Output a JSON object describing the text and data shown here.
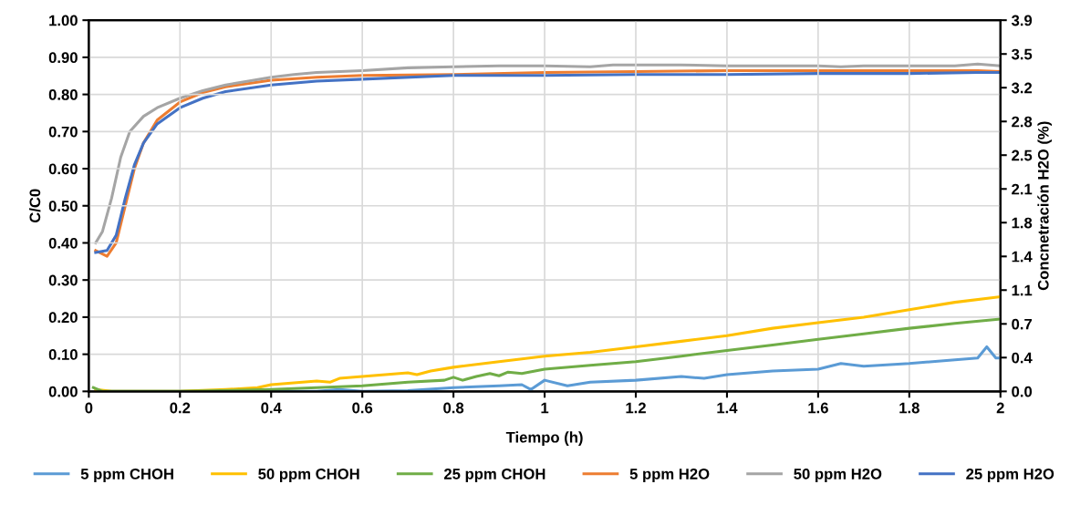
{
  "chart_data": {
    "type": "line",
    "xlabel": "Tiempo (h)",
    "ylabel": "C/C0",
    "y2label": "Concnetración H2O (%)",
    "xlim": [
      0,
      2
    ],
    "xticks": [
      0,
      0.2,
      0.4,
      0.6,
      0.8,
      1,
      1.2,
      1.4,
      1.6,
      1.8,
      2
    ],
    "ylim": [
      0,
      1
    ],
    "yticks": [
      {
        "value": 0,
        "label": "0.00"
      },
      {
        "value": 0.1,
        "label": "0.10"
      },
      {
        "value": 0.2,
        "label": "0.20"
      },
      {
        "value": 0.3,
        "label": "0.30"
      },
      {
        "value": 0.4,
        "label": "0.40"
      },
      {
        "value": 0.5,
        "label": "0.50"
      },
      {
        "value": 0.6,
        "label": "0.60"
      },
      {
        "value": 0.7,
        "label": "0.70"
      },
      {
        "value": 0.8,
        "label": "0.80"
      },
      {
        "value": 0.9,
        "label": "0.90"
      },
      {
        "value": 1,
        "label": "1.00"
      }
    ],
    "y2lim": [
      0,
      3.9
    ],
    "y2ticks": [
      {
        "value": 0,
        "label": "0.0"
      },
      {
        "value": 0.355,
        "label": "0.4"
      },
      {
        "value": 0.709,
        "label": "0.7"
      },
      {
        "value": 1.064,
        "label": "1.1"
      },
      {
        "value": 1.418,
        "label": "1.4"
      },
      {
        "value": 1.773,
        "label": "1.8"
      },
      {
        "value": 2.127,
        "label": "2.1"
      },
      {
        "value": 2.482,
        "label": "2.5"
      },
      {
        "value": 2.836,
        "label": "2.8"
      },
      {
        "value": 3.191,
        "label": "3.2"
      },
      {
        "value": 3.545,
        "label": "3.5"
      },
      {
        "value": 3.9,
        "label": "3.9"
      }
    ],
    "grid": true,
    "legend": "bottom",
    "marker": "none",
    "line_style": "solid",
    "series": [
      {
        "name": "5 ppm CHOH",
        "color": "#5b9bd5",
        "x": [
          0.015,
          0.5,
          0.55,
          0.6,
          0.7,
          0.8,
          0.9,
          0.95,
          0.97,
          1.0,
          1.05,
          1.1,
          1.2,
          1.3,
          1.35,
          1.4,
          1.5,
          1.6,
          1.65,
          1.7,
          1.8,
          1.9,
          1.95,
          1.97,
          1.99,
          2.0
        ],
        "values": [
          0.0,
          0.0,
          0.005,
          0.0,
          0.002,
          0.01,
          0.015,
          0.018,
          0.005,
          0.03,
          0.015,
          0.025,
          0.03,
          0.04,
          0.035,
          0.045,
          0.055,
          0.06,
          0.075,
          0.068,
          0.075,
          0.085,
          0.09,
          0.12,
          0.09,
          0.09
        ]
      },
      {
        "name": "50 ppm CHOH",
        "color": "#ffc000",
        "x": [
          0.015,
          0.05,
          0.2,
          0.3,
          0.37,
          0.4,
          0.5,
          0.53,
          0.55,
          0.6,
          0.7,
          0.72,
          0.75,
          0.8,
          0.9,
          1.0,
          1.1,
          1.2,
          1.3,
          1.4,
          1.5,
          1.6,
          1.7,
          1.8,
          1.9,
          2.0
        ],
        "values": [
          0.005,
          0.0,
          0.0,
          0.005,
          0.01,
          0.018,
          0.028,
          0.025,
          0.035,
          0.04,
          0.05,
          0.045,
          0.055,
          0.065,
          0.08,
          0.095,
          0.105,
          0.12,
          0.135,
          0.15,
          0.17,
          0.185,
          0.2,
          0.22,
          0.24,
          0.255
        ]
      },
      {
        "name": "25 ppm CHOH",
        "color": "#70ad47",
        "x": [
          0.01,
          0.03,
          0.2,
          0.4,
          0.5,
          0.6,
          0.7,
          0.78,
          0.8,
          0.82,
          0.85,
          0.88,
          0.9,
          0.92,
          0.95,
          1.0,
          1.1,
          1.2,
          1.3,
          1.4,
          1.5,
          1.6,
          1.7,
          1.8,
          1.9,
          2.0
        ],
        "values": [
          0.01,
          0.0,
          0.0,
          0.005,
          0.01,
          0.015,
          0.025,
          0.03,
          0.038,
          0.03,
          0.04,
          0.048,
          0.042,
          0.052,
          0.048,
          0.06,
          0.07,
          0.08,
          0.095,
          0.11,
          0.125,
          0.14,
          0.155,
          0.17,
          0.183,
          0.195
        ]
      },
      {
        "name": "5 ppm H2O",
        "color": "#ed7d31",
        "axis": "y2",
        "x": [
          0.015,
          0.04,
          0.06,
          0.08,
          0.1,
          0.12,
          0.15,
          0.2,
          0.25,
          0.3,
          0.4,
          0.5,
          0.6,
          0.8,
          1.0,
          1.2,
          1.4,
          1.6,
          1.8,
          1.95,
          2.0
        ],
        "values": [
          1.48,
          1.42,
          1.56,
          1.95,
          2.34,
          2.61,
          2.85,
          3.04,
          3.14,
          3.2,
          3.27,
          3.3,
          3.32,
          3.33,
          3.35,
          3.36,
          3.37,
          3.37,
          3.37,
          3.37,
          3.36
        ]
      },
      {
        "name": "50 ppm H2O",
        "color": "#a5a5a5",
        "axis": "y2",
        "x": [
          0.015,
          0.03,
          0.05,
          0.07,
          0.09,
          0.12,
          0.15,
          0.2,
          0.25,
          0.3,
          0.35,
          0.4,
          0.45,
          0.5,
          0.6,
          0.7,
          0.8,
          0.9,
          1.0,
          1.1,
          1.15,
          1.3,
          1.4,
          1.6,
          1.65,
          1.7,
          1.8,
          1.9,
          1.95,
          2.0
        ],
        "values": [
          1.56,
          1.68,
          2.03,
          2.46,
          2.73,
          2.89,
          2.98,
          3.08,
          3.16,
          3.22,
          3.26,
          3.3,
          3.33,
          3.35,
          3.37,
          3.4,
          3.41,
          3.42,
          3.42,
          3.41,
          3.43,
          3.43,
          3.42,
          3.42,
          3.41,
          3.42,
          3.42,
          3.42,
          3.44,
          3.42
        ]
      },
      {
        "name": "25 ppm H2O",
        "color": "#4472c4",
        "axis": "y2",
        "x": [
          0.015,
          0.04,
          0.06,
          0.08,
          0.1,
          0.12,
          0.15,
          0.2,
          0.25,
          0.3,
          0.4,
          0.5,
          0.6,
          0.8,
          1.0,
          1.2,
          1.4,
          1.6,
          1.8,
          1.95,
          2.0
        ],
        "values": [
          1.46,
          1.48,
          1.64,
          2.03,
          2.38,
          2.61,
          2.81,
          2.98,
          3.08,
          3.15,
          3.22,
          3.26,
          3.28,
          3.32,
          3.32,
          3.33,
          3.33,
          3.34,
          3.34,
          3.35,
          3.35
        ]
      }
    ]
  }
}
